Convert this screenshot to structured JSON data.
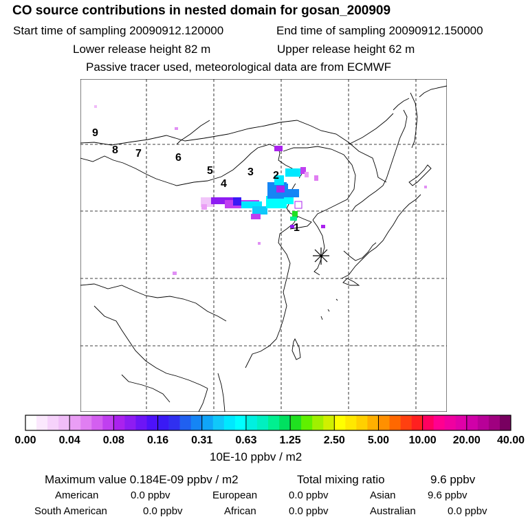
{
  "header": {
    "title": "CO  source contributions in nested domain for gosan_200909",
    "start_label": "Start time of sampling 20090912.120000",
    "end_label": "End time of sampling 20090912.150000",
    "lower_label": "Lower release height   82 m",
    "upper_label": "Upper release height   62 m",
    "tracer_note": "Passive tracer used, meteorological data are from ECMWF"
  },
  "map": {
    "trajectory_labels": [
      "1",
      "2",
      "3",
      "4",
      "5",
      "6",
      "7",
      "8",
      "9"
    ],
    "receptor_marker": "receptor-star"
  },
  "colorbar": {
    "tick_labels": [
      "0.00",
      "0.04",
      "0.08",
      "0.16",
      "0.31",
      "0.63",
      "1.25",
      "2.50",
      "5.00",
      "10.00",
      "20.00",
      "40.00"
    ],
    "unit": "10E-10 ppbv / m2",
    "colors": [
      "#ffffff",
      "#fbe8fd",
      "#f6d2fb",
      "#f0bdf8",
      "#ea9ef5",
      "#e07ef2",
      "#d35ff0",
      "#c03ff0",
      "#aa22ee",
      "#8e1cf2",
      "#6d15f6",
      "#4d12fa",
      "#3a1af5",
      "#3030f0",
      "#2060f0",
      "#1585f5",
      "#10a5f8",
      "#10c8fa",
      "#00e8ff",
      "#00ffff",
      "#00f0e0",
      "#00f0c0",
      "#00f090",
      "#00e060",
      "#20e020",
      "#60f000",
      "#a0f000",
      "#d0f000",
      "#ffff00",
      "#ffe800",
      "#ffd000",
      "#ffb000",
      "#ff9000",
      "#ff6800",
      "#ff4010",
      "#ff2020",
      "#ff0060",
      "#ff0090",
      "#f000a0",
      "#e000a8",
      "#d000a8",
      "#b80098",
      "#a00080",
      "#780060"
    ]
  },
  "stats": {
    "max_label": "Maximum value  0.184E-09 ppbv / m2",
    "total_label": "Total mixing ratio",
    "total_value": "9.6 ppbv",
    "american_label": "American",
    "american_value": "0.0 ppbv",
    "european_label": "European",
    "european_value": "0.0 ppbv",
    "asian_label": "Asian",
    "asian_value": "9.6 ppbv",
    "south_american_label": "South American",
    "south_american_value": "0.0 ppbv",
    "african_label": "African",
    "african_value": "0.0 ppbv",
    "australian_label": "Australian",
    "australian_value": "0.0 ppbv"
  }
}
